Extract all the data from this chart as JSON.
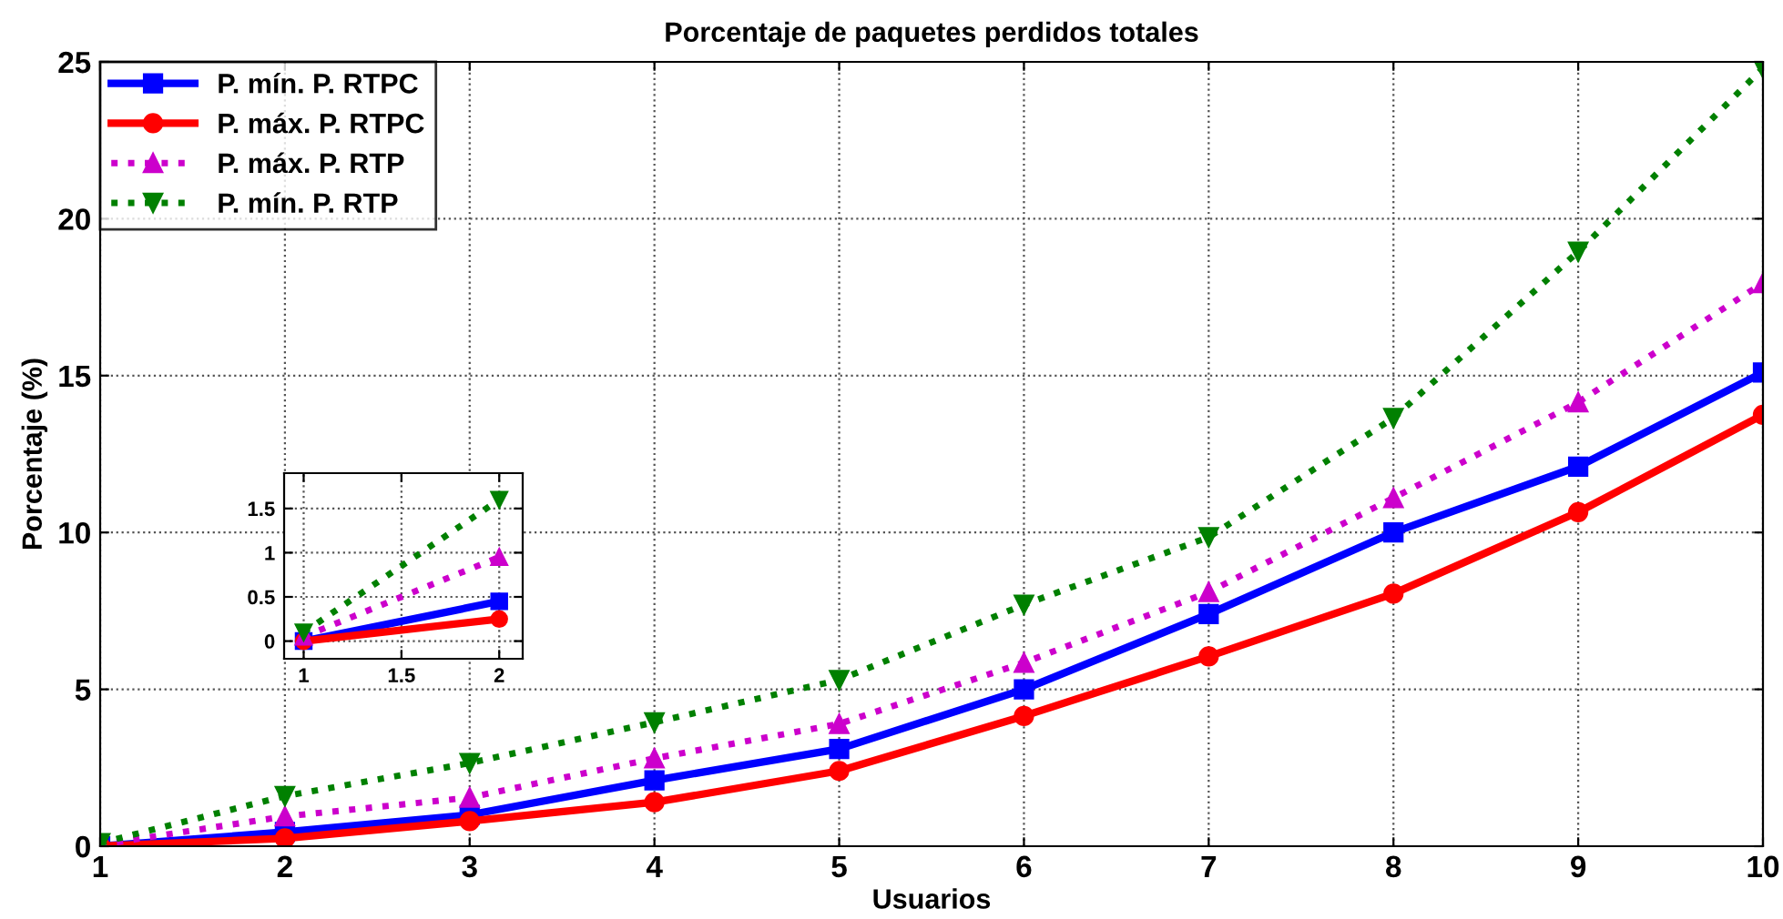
{
  "chart_data": [
    {
      "type": "line",
      "title": "Porcentaje de paquetes perdidos totales",
      "xlabel": "Usuarios",
      "ylabel": "Porcentaje (%)",
      "x": [
        1,
        2,
        3,
        4,
        5,
        6,
        7,
        8,
        9,
        10
      ],
      "xlim": [
        1,
        10
      ],
      "xticks": [
        1,
        2,
        3,
        4,
        5,
        6,
        7,
        8,
        9,
        10
      ],
      "ylim": [
        0,
        25
      ],
      "yticks": [
        0,
        5,
        10,
        15,
        20,
        25
      ],
      "grid": true,
      "legend": "top left",
      "series": [
        {
          "name": "P. mín. P. RTPC",
          "color": "#0000ff",
          "marker": "square",
          "line_style": "solid",
          "values": [
            0,
            0.45,
            1.0,
            2.1,
            3.1,
            5.0,
            7.4,
            10.0,
            12.1,
            15.1
          ]
        },
        {
          "name": "P. máx. P. RTPC",
          "color": "#ff0000",
          "marker": "circle",
          "line_style": "solid",
          "values": [
            0,
            0.25,
            0.8,
            1.4,
            2.4,
            4.15,
            6.05,
            8.05,
            10.65,
            13.75
          ]
        },
        {
          "name": "P. máx. P. RTP",
          "color": "#cc00cc",
          "marker": "triangle",
          "line_style": "dotted",
          "values": [
            0.05,
            0.95,
            1.55,
            2.8,
            3.9,
            5.85,
            8.1,
            11.1,
            14.15,
            17.95
          ]
        },
        {
          "name": "P. mín. P. RTP",
          "color": "#008000",
          "marker": "triangle_down",
          "line_style": "dotted",
          "values": [
            0.1,
            1.6,
            2.65,
            3.95,
            5.3,
            7.7,
            9.85,
            13.65,
            18.95,
            24.8
          ]
        }
      ]
    },
    {
      "type": "line",
      "x": [
        1,
        2
      ],
      "xlim": [
        0.9,
        2.12
      ],
      "xticks": [
        1,
        1.5,
        2
      ],
      "ylim": [
        -0.2,
        1.9
      ],
      "yticks": [
        0,
        0.5,
        1,
        1.5
      ],
      "grid": true,
      "series": [
        {
          "color": "#0000ff",
          "marker": "square",
          "line_style": "solid",
          "values": [
            0,
            0.45
          ]
        },
        {
          "color": "#ff0000",
          "marker": "circle",
          "line_style": "solid",
          "values": [
            0,
            0.25
          ]
        },
        {
          "color": "#cc00cc",
          "marker": "triangle",
          "line_style": "dotted",
          "values": [
            0.05,
            0.95
          ]
        },
        {
          "color": "#008000",
          "marker": "triangle_down",
          "line_style": "dotted",
          "values": [
            0.1,
            1.6
          ]
        }
      ]
    }
  ]
}
